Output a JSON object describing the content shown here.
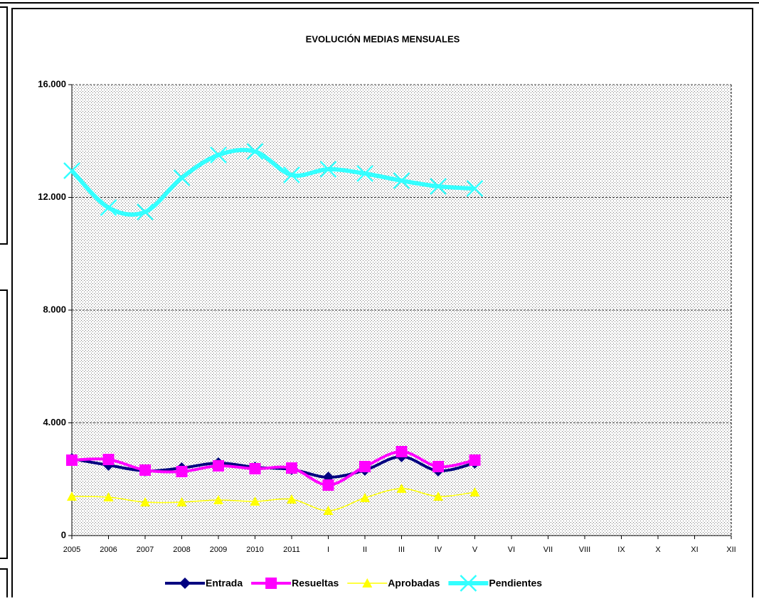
{
  "chart_data": {
    "type": "line",
    "title": "EVOLUCIÓN MEDIAS MENSUALES",
    "categories": [
      "2005",
      "2006",
      "2007",
      "2008",
      "2009",
      "2010",
      "2011",
      "I",
      "II",
      "III",
      "IV",
      "V",
      "VI",
      "VII",
      "VIII",
      "IX",
      "X",
      "XI",
      "XII"
    ],
    "ylim": [
      0,
      16000
    ],
    "yticks": [
      {
        "value": 0,
        "label": "0"
      },
      {
        "value": 4000,
        "label": "4.000"
      },
      {
        "value": 8000,
        "label": "8.000"
      },
      {
        "value": 12000,
        "label": "12.000"
      },
      {
        "value": 16000,
        "label": "16.000"
      }
    ],
    "grid": true,
    "legend": "bottom",
    "series": [
      {
        "name": "Entrada",
        "color": "#000080",
        "marker": "diamond",
        "values": [
          2725,
          2498,
          2297,
          2397,
          2574,
          2423,
          2347,
          2069,
          2322,
          2801,
          2297,
          2574,
          null,
          null,
          null,
          null,
          null,
          null,
          null
        ]
      },
      {
        "name": "Resueltas",
        "color": "#ff00ff",
        "marker": "square",
        "values": [
          2675,
          2700,
          2322,
          2271,
          2473,
          2372,
          2397,
          1792,
          2448,
          2978,
          2448,
          2675,
          null,
          null,
          null,
          null,
          null,
          null,
          null
        ]
      },
      {
        "name": "Aprobadas",
        "color": "#ffff00",
        "marker": "triangle",
        "values": [
          1388,
          1363,
          1186,
          1186,
          1262,
          1211,
          1287,
          883,
          1338,
          1666,
          1388,
          1540,
          null,
          null,
          null,
          null,
          null,
          null,
          null
        ]
      },
      {
        "name": "Pendientes",
        "color": "#33ffff",
        "marker": "x",
        "values": [
          12946,
          11634,
          11483,
          12694,
          13502,
          13628,
          12795,
          12997,
          12845,
          12593,
          12391,
          12315,
          null,
          null,
          null,
          null,
          null,
          null,
          null
        ]
      }
    ]
  }
}
